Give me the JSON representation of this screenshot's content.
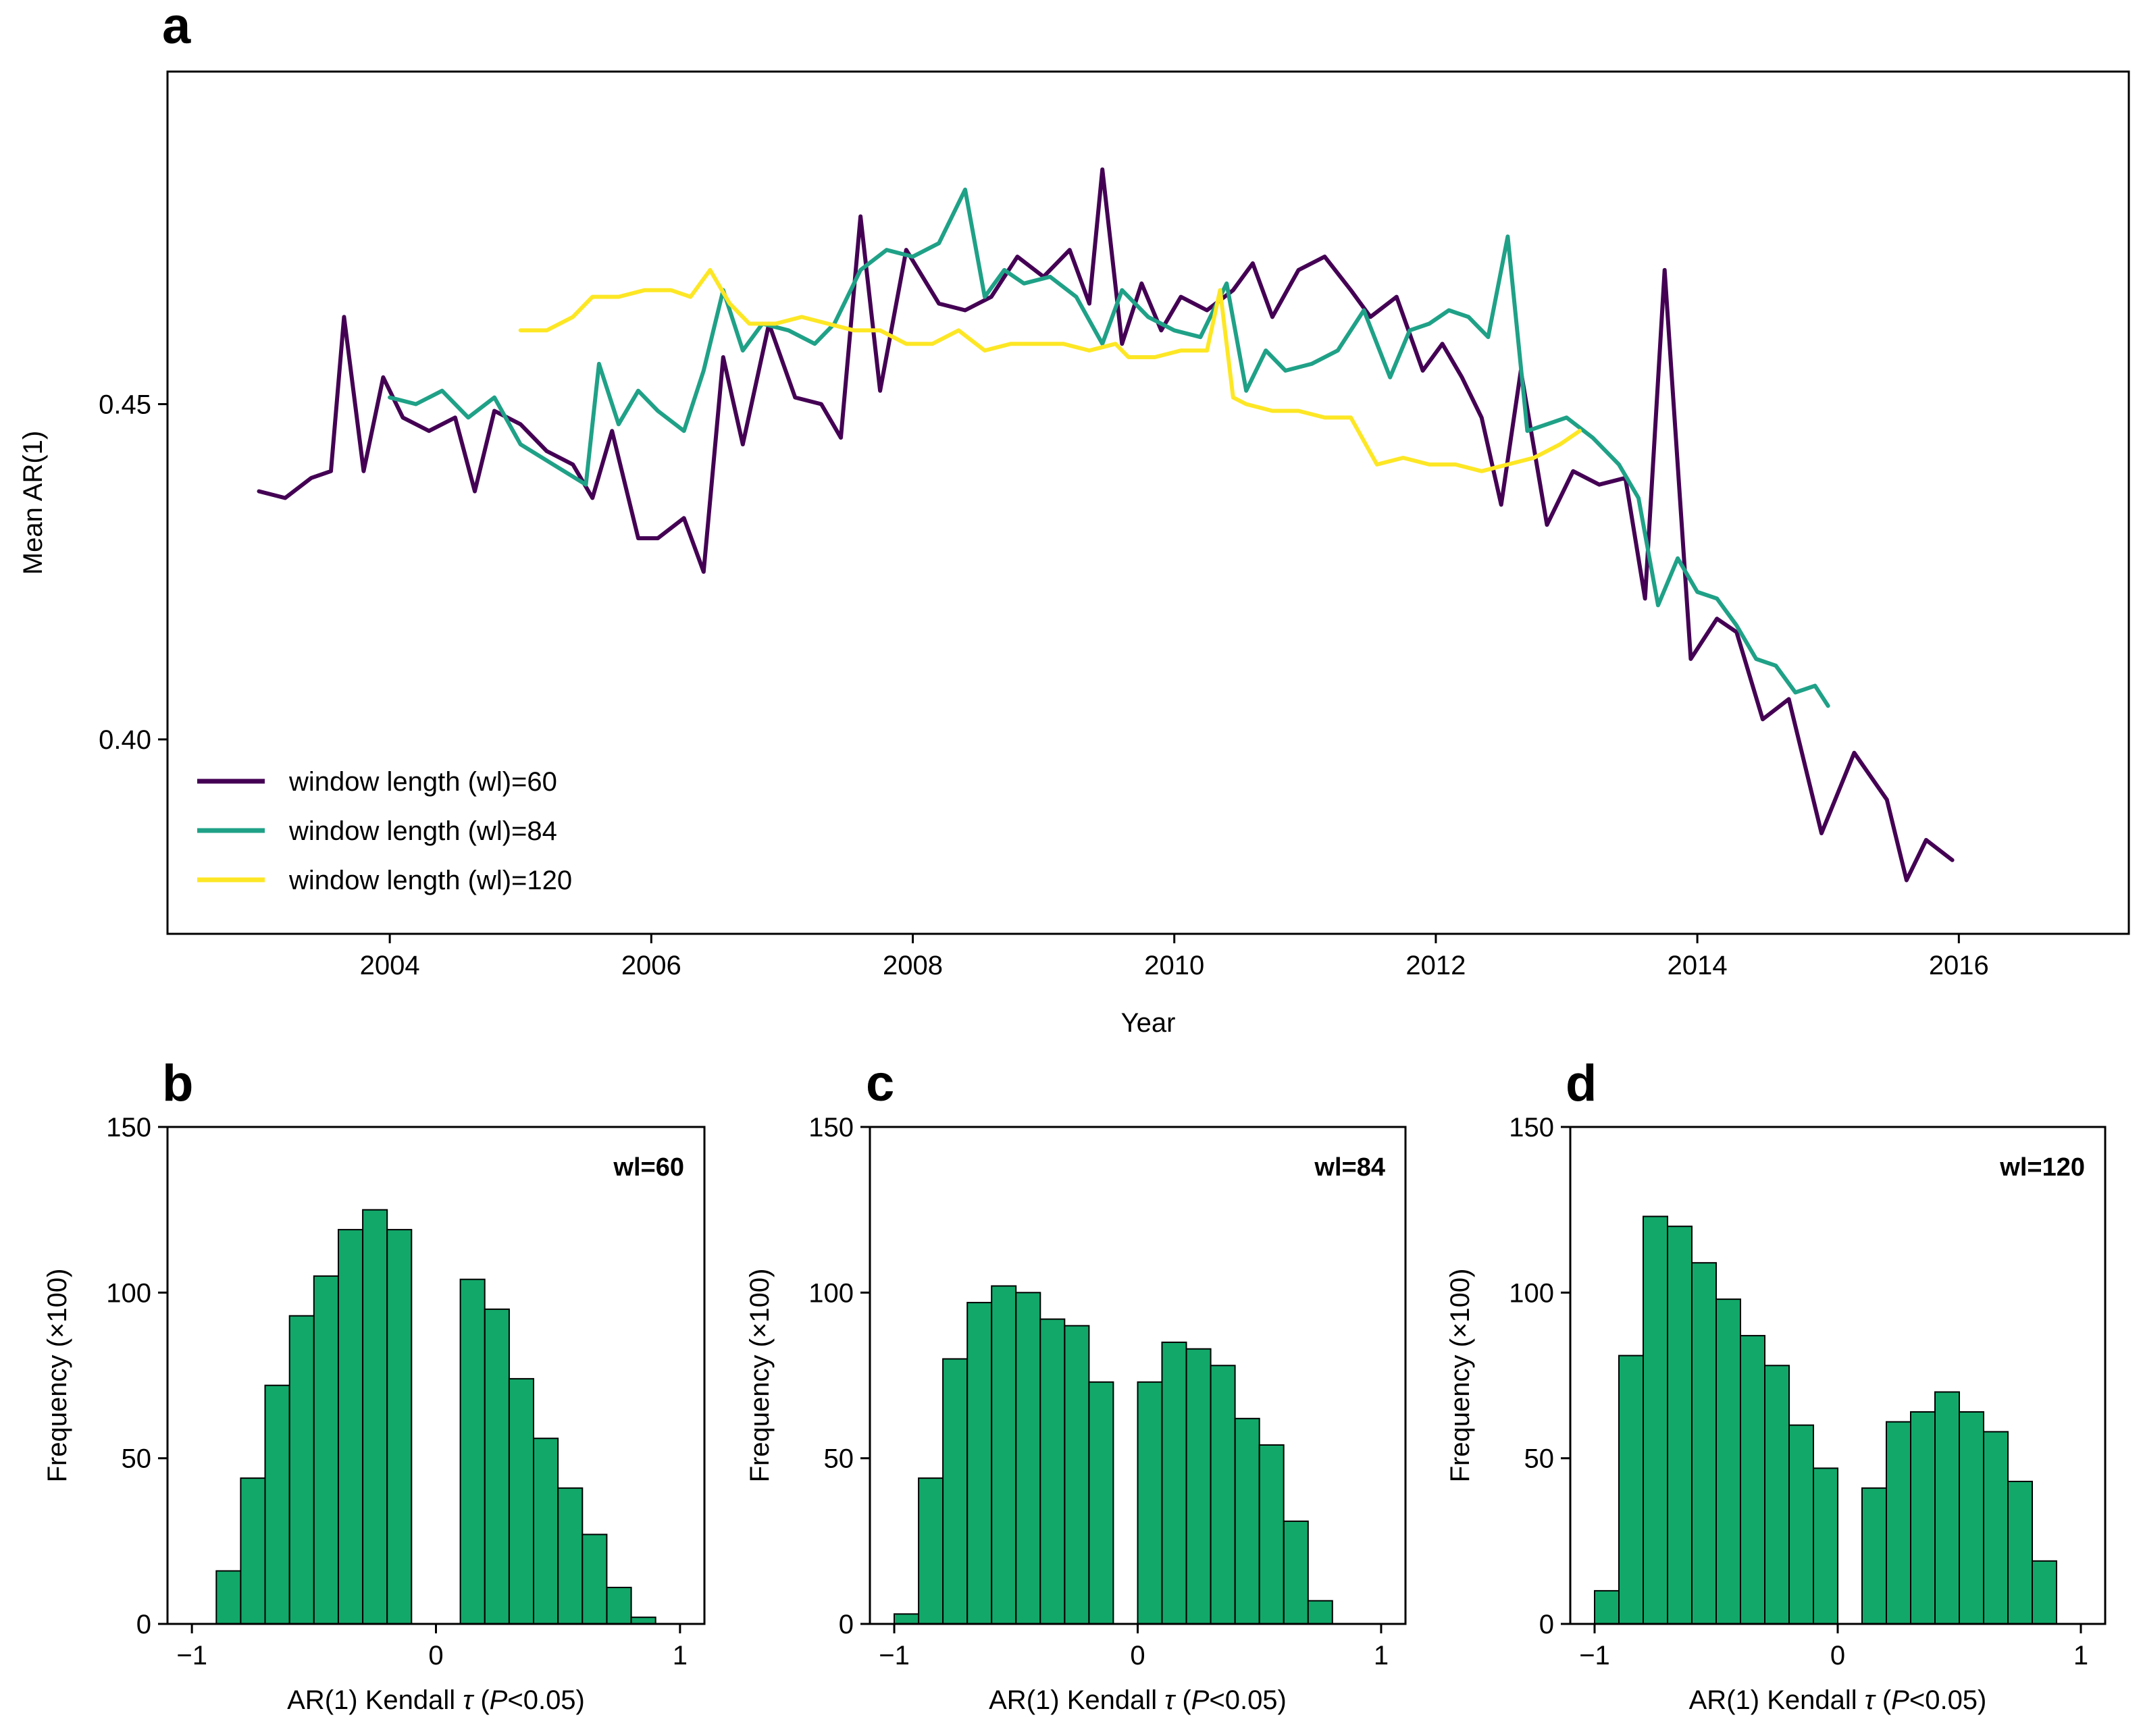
{
  "chart_data": [
    {
      "panel": "a",
      "type": "line",
      "xlabel": "Year",
      "ylabel": "Mean AR(1)",
      "xlim": [
        2002.3,
        2017.3
      ],
      "ylim": [
        0.371,
        0.4996
      ],
      "xticks": [
        2004,
        2006,
        2008,
        2010,
        2012,
        2014,
        2016
      ],
      "xtick_labels": [
        "2004",
        "2006",
        "2008",
        "2010",
        "2012",
        "2014",
        "2016"
      ],
      "yticks": [
        0.4,
        0.45
      ],
      "ytick_labels": [
        "0.40",
        "0.45"
      ],
      "legend_position": "lower-left",
      "series": [
        {
          "name": "window length (wl)=60",
          "color": "#440154",
          "x": [
            2003.0,
            2003.2,
            2003.4,
            2003.55,
            2003.65,
            2003.8,
            2003.95,
            2004.1,
            2004.3,
            2004.5,
            2004.65,
            2004.8,
            2005.0,
            2005.2,
            2005.4,
            2005.55,
            2005.7,
            2005.9,
            2006.05,
            2006.25,
            2006.4,
            2006.55,
            2006.7,
            2006.9,
            2007.1,
            2007.3,
            2007.45,
            2007.6,
            2007.75,
            2007.95,
            2008.2,
            2008.4,
            2008.6,
            2008.8,
            2009.0,
            2009.2,
            2009.35,
            2009.45,
            2009.6,
            2009.75,
            2009.9,
            2010.05,
            2010.25,
            2010.45,
            2010.6,
            2010.75,
            2010.95,
            2011.15,
            2011.35,
            2011.5,
            2011.7,
            2011.9,
            2012.05,
            2012.2,
            2012.35,
            2012.5,
            2012.65,
            2012.85,
            2013.05,
            2013.25,
            2013.45,
            2013.6,
            2013.75,
            2013.95,
            2014.15,
            2014.3,
            2014.5,
            2014.7,
            2014.95,
            2015.2,
            2015.45,
            2015.6,
            2015.75,
            2015.95
          ],
          "y": [
            0.437,
            0.436,
            0.439,
            0.44,
            0.463,
            0.44,
            0.454,
            0.448,
            0.446,
            0.448,
            0.437,
            0.449,
            0.447,
            0.443,
            0.441,
            0.436,
            0.446,
            0.43,
            0.43,
            0.433,
            0.425,
            0.457,
            0.444,
            0.462,
            0.451,
            0.45,
            0.445,
            0.478,
            0.452,
            0.473,
            0.465,
            0.464,
            0.466,
            0.472,
            0.469,
            0.473,
            0.465,
            0.485,
            0.459,
            0.468,
            0.461,
            0.466,
            0.464,
            0.467,
            0.471,
            0.463,
            0.47,
            0.472,
            0.467,
            0.463,
            0.466,
            0.455,
            0.459,
            0.454,
            0.448,
            0.435,
            0.455,
            0.432,
            0.44,
            0.438,
            0.439,
            0.421,
            0.47,
            0.412,
            0.418,
            0.416,
            0.403,
            0.406,
            0.386,
            0.398,
            0.391,
            0.379,
            0.385,
            0.382
          ]
        },
        {
          "name": "window length (wl)=84",
          "color": "#1fa187",
          "x": [
            2004.0,
            2004.2,
            2004.4,
            2004.6,
            2004.8,
            2005.0,
            2005.25,
            2005.5,
            2005.6,
            2005.75,
            2005.9,
            2006.05,
            2006.25,
            2006.4,
            2006.55,
            2006.7,
            2006.85,
            2007.05,
            2007.25,
            2007.4,
            2007.6,
            2007.8,
            2008.0,
            2008.2,
            2008.4,
            2008.55,
            2008.7,
            2008.85,
            2009.05,
            2009.25,
            2009.45,
            2009.6,
            2009.8,
            2010.0,
            2010.2,
            2010.4,
            2010.55,
            2010.7,
            2010.85,
            2011.05,
            2011.25,
            2011.45,
            2011.65,
            2011.8,
            2011.95,
            2012.1,
            2012.25,
            2012.4,
            2012.55,
            2012.7,
            2012.85,
            2013.0,
            2013.2,
            2013.4,
            2013.55,
            2013.7,
            2013.85,
            2014.0,
            2014.15,
            2014.3,
            2014.45,
            2014.6,
            2014.75,
            2014.9,
            2015.0
          ],
          "y": [
            0.451,
            0.45,
            0.452,
            0.448,
            0.451,
            0.444,
            0.441,
            0.438,
            0.456,
            0.447,
            0.452,
            0.449,
            0.446,
            0.455,
            0.467,
            0.458,
            0.462,
            0.461,
            0.459,
            0.462,
            0.47,
            0.473,
            0.472,
            0.474,
            0.482,
            0.466,
            0.47,
            0.468,
            0.469,
            0.466,
            0.459,
            0.467,
            0.463,
            0.461,
            0.46,
            0.468,
            0.452,
            0.458,
            0.455,
            0.456,
            0.458,
            0.464,
            0.454,
            0.461,
            0.462,
            0.464,
            0.463,
            0.46,
            0.475,
            0.446,
            0.447,
            0.448,
            0.445,
            0.441,
            0.436,
            0.42,
            0.427,
            0.422,
            0.421,
            0.417,
            0.412,
            0.411,
            0.407,
            0.408,
            0.405
          ]
        },
        {
          "name": "window length (wl)=120",
          "color": "#fde725",
          "x": [
            2005.0,
            2005.2,
            2005.4,
            2005.55,
            2005.75,
            2005.95,
            2006.15,
            2006.3,
            2006.45,
            2006.6,
            2006.75,
            2006.95,
            2007.15,
            2007.35,
            2007.55,
            2007.75,
            2007.95,
            2008.15,
            2008.35,
            2008.55,
            2008.75,
            2008.95,
            2009.15,
            2009.35,
            2009.55,
            2009.65,
            2009.85,
            2010.05,
            2010.25,
            2010.35,
            2010.45,
            2010.55,
            2010.75,
            2010.95,
            2011.15,
            2011.35,
            2011.55,
            2011.75,
            2011.95,
            2012.15,
            2012.35,
            2012.55,
            2012.75,
            2012.95,
            2013.1
          ],
          "y": [
            0.461,
            0.461,
            0.463,
            0.466,
            0.466,
            0.467,
            0.467,
            0.466,
            0.47,
            0.465,
            0.462,
            0.462,
            0.463,
            0.462,
            0.461,
            0.461,
            0.459,
            0.459,
            0.461,
            0.458,
            0.459,
            0.459,
            0.459,
            0.458,
            0.459,
            0.457,
            0.457,
            0.458,
            0.458,
            0.467,
            0.451,
            0.45,
            0.449,
            0.449,
            0.448,
            0.448,
            0.441,
            0.442,
            0.441,
            0.441,
            0.44,
            0.441,
            0.442,
            0.444,
            0.446
          ]
        }
      ]
    },
    {
      "panel": "b",
      "type": "bar",
      "annotation": "wl=60",
      "xlabel": "AR(1) Kendall τ (P<0.05)",
      "ylabel": "Frequency (×100)",
      "xlim": [
        -1.1,
        1.1
      ],
      "ylim": [
        0,
        150
      ],
      "xticks": [
        -1,
        0,
        1
      ],
      "xtick_labels": [
        "−1",
        "0",
        "1"
      ],
      "yticks": [
        0,
        50,
        100,
        150
      ],
      "ytick_labels": [
        "0",
        "50",
        "100",
        "150"
      ],
      "bin_start": -1.0,
      "bin_width": 0.1,
      "values": [
        0,
        16,
        44,
        72,
        93,
        105,
        119,
        125,
        119,
        0,
        0,
        104,
        95,
        74,
        56,
        41,
        27,
        11,
        2,
        0
      ]
    },
    {
      "panel": "c",
      "type": "bar",
      "annotation": "wl=84",
      "xlabel": "AR(1) Kendall τ (P<0.05)",
      "ylabel": "Frequency (×100)",
      "xlim": [
        -1.1,
        1.1
      ],
      "ylim": [
        0,
        150
      ],
      "xticks": [
        -1,
        0,
        1
      ],
      "xtick_labels": [
        "−1",
        "0",
        "1"
      ],
      "yticks": [
        0,
        50,
        100,
        150
      ],
      "ytick_labels": [
        "0",
        "50",
        "100",
        "150"
      ],
      "bin_start": -1.0,
      "bin_width": 0.1,
      "values": [
        3,
        44,
        80,
        97,
        102,
        100,
        92,
        90,
        73,
        0,
        73,
        85,
        83,
        78,
        62,
        54,
        31,
        7,
        0,
        0
      ]
    },
    {
      "panel": "d",
      "type": "bar",
      "annotation": "wl=120",
      "xlabel": "AR(1) Kendall τ (P<0.05)",
      "ylabel": "Frequency (×100)",
      "xlim": [
        -1.1,
        1.1
      ],
      "ylim": [
        0,
        150
      ],
      "xticks": [
        -1,
        0,
        1
      ],
      "xtick_labels": [
        "−1",
        "0",
        "1"
      ],
      "yticks": [
        0,
        50,
        100,
        150
      ],
      "ytick_labels": [
        "0",
        "50",
        "100",
        "150"
      ],
      "bin_start": -1.0,
      "bin_width": 0.1,
      "values": [
        10,
        81,
        123,
        120,
        109,
        98,
        87,
        78,
        60,
        47,
        0,
        41,
        61,
        64,
        70,
        64,
        58,
        43,
        19,
        0
      ]
    }
  ]
}
